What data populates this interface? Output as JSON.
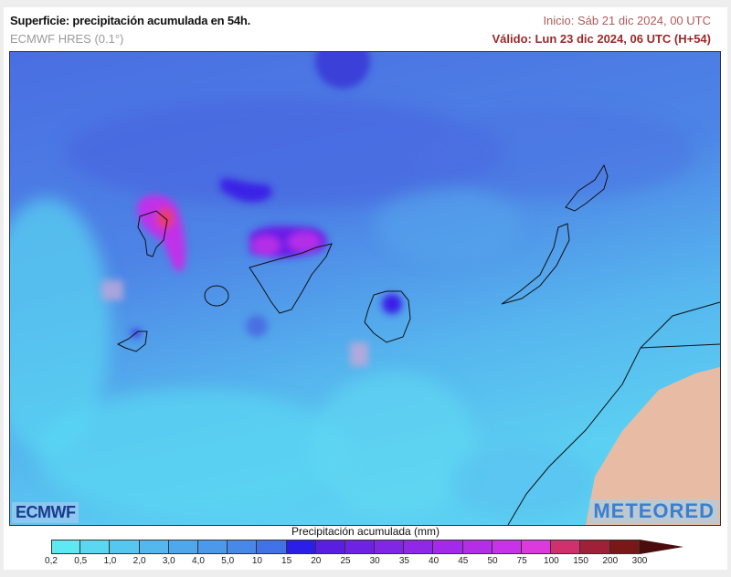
{
  "header": {
    "title": "Superficie: precipitación acumulada en 54h.",
    "model": "ECMWF HRES (0.1°)",
    "init": "Inicio: Sáb 21 dic 2024, 00 UTC",
    "valid": "Válido: Lun 23 dic 2024, 06 UTC (H+54)"
  },
  "map": {
    "logos": {
      "left": "ECMWF",
      "right": "METEORED"
    },
    "land_color": "#e8bca4",
    "sea_high_color": "#4a6ee2",
    "sea_low_color": "#5cd4f0"
  },
  "colorbar": {
    "title": "Precipitación acumulada (mm)",
    "labels": [
      "0,2",
      "0,5",
      "1,0",
      "2,0",
      "3,0",
      "4,0",
      "5,0",
      "10",
      "15",
      "20",
      "25",
      "30",
      "35",
      "40",
      "45",
      "50",
      "75",
      "100",
      "150",
      "200",
      "300"
    ],
    "colors": [
      "#5ee8f2",
      "#5ad8f2",
      "#56c8f0",
      "#54b8ee",
      "#50a8ec",
      "#4c98ea",
      "#4888e8",
      "#4272e8",
      "#2a1ee8",
      "#5a1ee2",
      "#6e22e4",
      "#8026e6",
      "#9028e8",
      "#a22ae8",
      "#b42ee8",
      "#c832e8",
      "#dc3adc",
      "#d0306e",
      "#a02038",
      "#7a1818"
    ],
    "overflow_color": "#4a0c0c"
  }
}
